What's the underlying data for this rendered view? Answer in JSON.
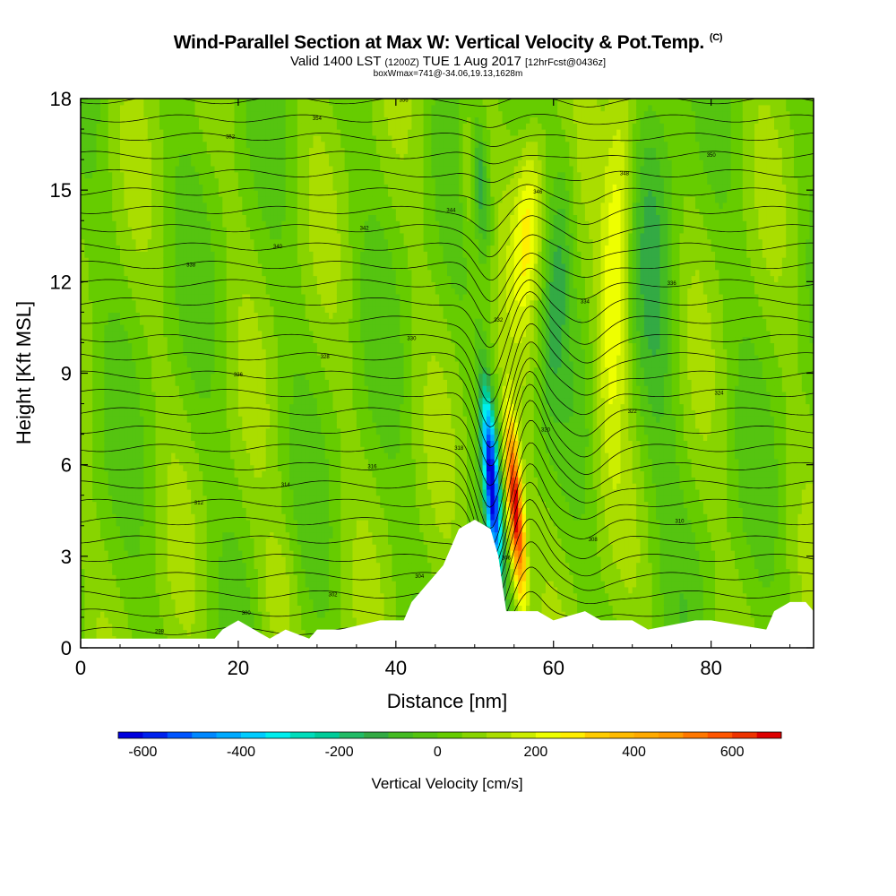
{
  "chart_data": {
    "type": "heatmap",
    "title": "Wind-Parallel Section at Max W: Vertical Velocity & Pot.Temp.",
    "copyright_mark": "(C)",
    "subtitle_main": "Valid 1400 LST",
    "subtitle_utc": "(1200Z)",
    "subtitle_date": "TUE 1 Aug 2017",
    "subtitle_fcst": "[12hrFcst@0436z]",
    "subtitle2": "boxWmax=741@-34.06,19.13,1628m",
    "xlabel": "Distance [nm]",
    "ylabel": "Height [Kft MSL]",
    "xlim": [
      0,
      93
    ],
    "ylim": [
      0,
      18
    ],
    "x_ticks": [
      "0",
      "20",
      "40",
      "60",
      "80"
    ],
    "x_tick_values": [
      0,
      20,
      40,
      60,
      80
    ],
    "y_ticks": [
      "0",
      "3",
      "6",
      "9",
      "12",
      "15",
      "18"
    ],
    "y_tick_values": [
      0,
      3,
      6,
      9,
      12,
      15,
      18
    ],
    "colorbar": {
      "label": "Vertical Velocity [cm/s]",
      "min": -650,
      "max": 700,
      "step": 50,
      "tick_labels": [
        "-600",
        "-400",
        "-200",
        "0",
        "200",
        "400",
        "600"
      ],
      "tick_values": [
        -600,
        -400,
        -200,
        0,
        200,
        400,
        600
      ],
      "colors": [
        "#0000dd",
        "#0022ee",
        "#0055ff",
        "#0088ff",
        "#00aaff",
        "#00ccff",
        "#00eeee",
        "#00ddbb",
        "#00cc99",
        "#22bb66",
        "#33aa44",
        "#44bb22",
        "#55c410",
        "#66cc00",
        "#88d400",
        "#aadd00",
        "#ccee00",
        "#eeff00",
        "#ffee00",
        "#ffcc00",
        "#ffbb00",
        "#ffaa00",
        "#ff9900",
        "#ff7700",
        "#ff5500",
        "#ee3300",
        "#dd0000"
      ]
    },
    "terrain_profile": {
      "x": [
        0,
        17,
        18,
        20,
        22,
        24,
        26,
        29,
        30,
        33,
        38,
        41,
        42,
        44,
        46,
        47,
        48,
        50,
        52,
        53,
        54,
        58,
        60,
        64,
        66,
        70,
        72,
        78,
        80,
        87,
        88,
        90,
        92,
        93
      ],
      "height": [
        0.3,
        0.3,
        0.6,
        0.9,
        0.6,
        0.3,
        0.6,
        0.3,
        0.6,
        0.6,
        0.9,
        0.9,
        1.5,
        2.1,
        2.7,
        3.3,
        3.9,
        4.2,
        3.9,
        3.0,
        1.2,
        1.2,
        0.9,
        1.2,
        0.9,
        0.9,
        0.6,
        0.9,
        0.9,
        0.6,
        1.2,
        1.5,
        1.5,
        1.2
      ]
    },
    "isentropes": {
      "count": 30,
      "labels": [
        "298",
        "300",
        "302",
        "304",
        "306",
        "308",
        "310",
        "312",
        "314",
        "316",
        "318",
        "320",
        "322",
        "324",
        "326",
        "328",
        "330",
        "332",
        "334",
        "336",
        "338",
        "340",
        "342",
        "344",
        "346",
        "348",
        "350",
        "352",
        "354",
        "356"
      ]
    }
  }
}
